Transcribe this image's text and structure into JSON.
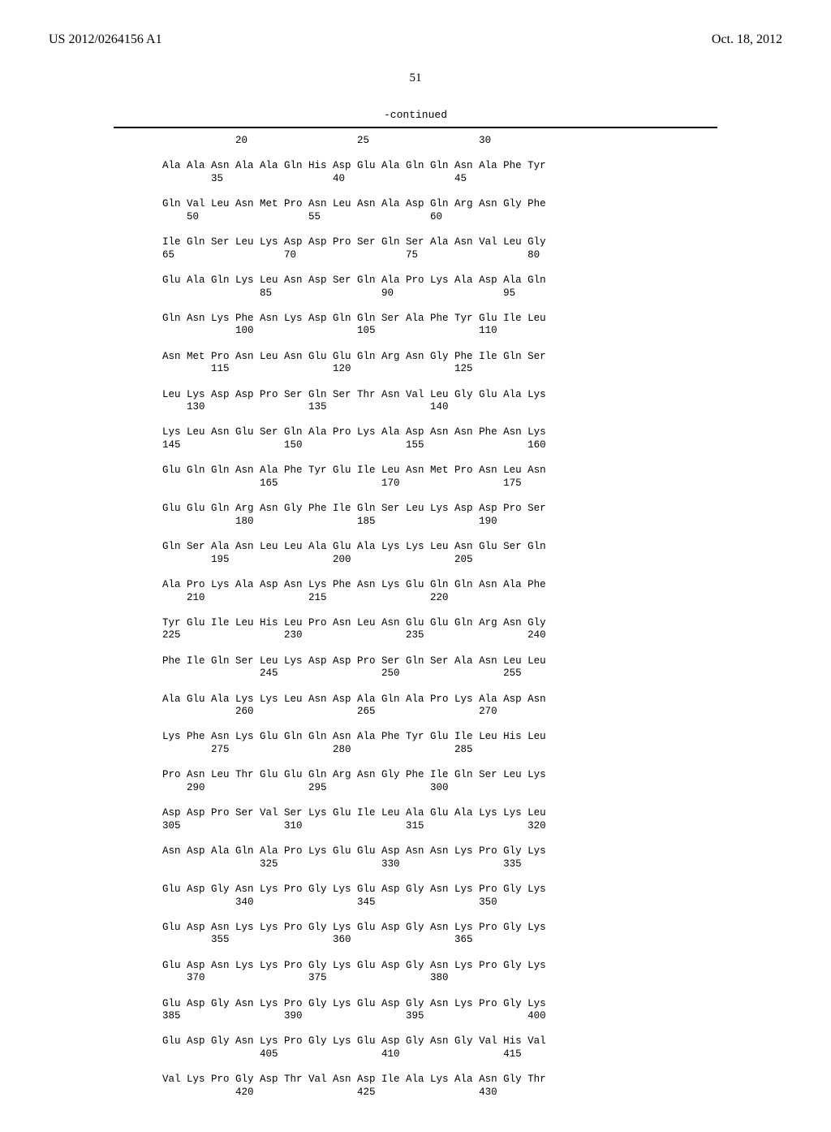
{
  "header": {
    "pub_number": "US 2012/0264156 A1",
    "pub_date": "Oct. 18, 2012"
  },
  "page_number": "51",
  "continued_label": "-continued",
  "sequence_lines": [
    "            20                  25                  30",
    "",
    "Ala Ala Asn Ala Ala Gln His Asp Glu Ala Gln Gln Asn Ala Phe Tyr",
    "        35                  40                  45",
    "",
    "Gln Val Leu Asn Met Pro Asn Leu Asn Ala Asp Gln Arg Asn Gly Phe",
    "    50                  55                  60",
    "",
    "Ile Gln Ser Leu Lys Asp Asp Pro Ser Gln Ser Ala Asn Val Leu Gly",
    "65                  70                  75                  80",
    "",
    "Glu Ala Gln Lys Leu Asn Asp Ser Gln Ala Pro Lys Ala Asp Ala Gln",
    "                85                  90                  95",
    "",
    "Gln Asn Lys Phe Asn Lys Asp Gln Gln Ser Ala Phe Tyr Glu Ile Leu",
    "            100                 105                 110",
    "",
    "Asn Met Pro Asn Leu Asn Glu Glu Gln Arg Asn Gly Phe Ile Gln Ser",
    "        115                 120                 125",
    "",
    "Leu Lys Asp Asp Pro Ser Gln Ser Thr Asn Val Leu Gly Glu Ala Lys",
    "    130                 135                 140",
    "",
    "Lys Leu Asn Glu Ser Gln Ala Pro Lys Ala Asp Asn Asn Phe Asn Lys",
    "145                 150                 155                 160",
    "",
    "Glu Gln Gln Asn Ala Phe Tyr Glu Ile Leu Asn Met Pro Asn Leu Asn",
    "                165                 170                 175",
    "",
    "Glu Glu Gln Arg Asn Gly Phe Ile Gln Ser Leu Lys Asp Asp Pro Ser",
    "            180                 185                 190",
    "",
    "Gln Ser Ala Asn Leu Leu Ala Glu Ala Lys Lys Leu Asn Glu Ser Gln",
    "        195                 200                 205",
    "",
    "Ala Pro Lys Ala Asp Asn Lys Phe Asn Lys Glu Gln Gln Asn Ala Phe",
    "    210                 215                 220",
    "",
    "Tyr Glu Ile Leu His Leu Pro Asn Leu Asn Glu Glu Gln Arg Asn Gly",
    "225                 230                 235                 240",
    "",
    "Phe Ile Gln Ser Leu Lys Asp Asp Pro Ser Gln Ser Ala Asn Leu Leu",
    "                245                 250                 255",
    "",
    "Ala Glu Ala Lys Lys Leu Asn Asp Ala Gln Ala Pro Lys Ala Asp Asn",
    "            260                 265                 270",
    "",
    "Lys Phe Asn Lys Glu Gln Gln Asn Ala Phe Tyr Glu Ile Leu His Leu",
    "        275                 280                 285",
    "",
    "Pro Asn Leu Thr Glu Glu Gln Arg Asn Gly Phe Ile Gln Ser Leu Lys",
    "    290                 295                 300",
    "",
    "Asp Asp Pro Ser Val Ser Lys Glu Ile Leu Ala Glu Ala Lys Lys Leu",
    "305                 310                 315                 320",
    "",
    "Asn Asp Ala Gln Ala Pro Lys Glu Glu Asp Asn Asn Lys Pro Gly Lys",
    "                325                 330                 335",
    "",
    "Glu Asp Gly Asn Lys Pro Gly Lys Glu Asp Gly Asn Lys Pro Gly Lys",
    "            340                 345                 350",
    "",
    "Glu Asp Asn Lys Lys Pro Gly Lys Glu Asp Gly Asn Lys Pro Gly Lys",
    "        355                 360                 365",
    "",
    "Glu Asp Asn Lys Lys Pro Gly Lys Glu Asp Gly Asn Lys Pro Gly Lys",
    "    370                 375                 380",
    "",
    "Glu Asp Gly Asn Lys Pro Gly Lys Glu Asp Gly Asn Lys Pro Gly Lys",
    "385                 390                 395                 400",
    "",
    "Glu Asp Gly Asn Lys Pro Gly Lys Glu Asp Gly Asn Gly Val His Val",
    "                405                 410                 415",
    "",
    "Val Lys Pro Gly Asp Thr Val Asn Asp Ile Ala Lys Ala Asn Gly Thr",
    "            420                 425                 430"
  ]
}
